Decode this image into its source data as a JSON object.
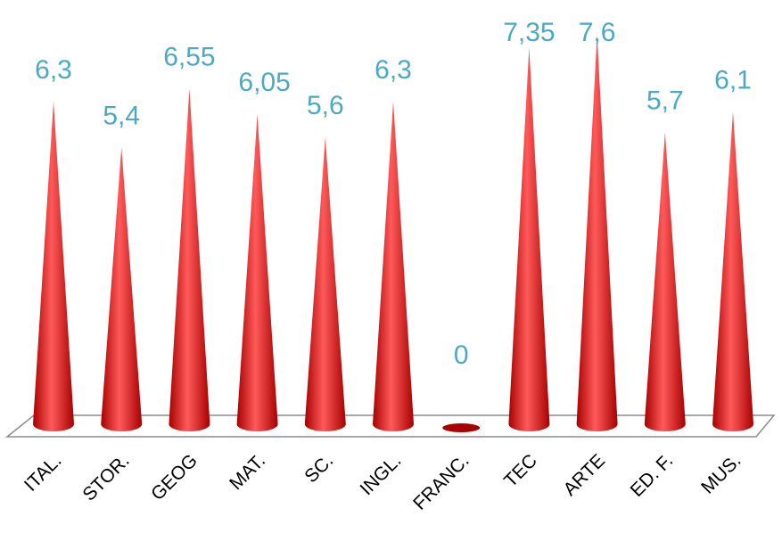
{
  "chart_data": {
    "type": "bar",
    "style": "3d-cone",
    "categories": [
      "ITAL.",
      "STOR.",
      "GEOG",
      "MAT.",
      "SC.",
      "INGL.",
      "FRANC.",
      "TEC",
      "ARTE",
      "ED. F.",
      "MUS."
    ],
    "value_labels": [
      "6,3",
      "5,4",
      "6,55",
      "6,05",
      "5,6",
      "6,3",
      "0",
      "7,35",
      "7,6",
      "5,7",
      "6,1"
    ],
    "values": [
      6.3,
      5.4,
      6.55,
      6.05,
      5.6,
      6.3,
      0,
      7.35,
      7.6,
      5.7,
      6.1
    ],
    "title": "",
    "xlabel": "",
    "ylabel": "",
    "ylim": [
      0,
      8
    ],
    "grid": false,
    "legend": "none",
    "colors": {
      "bar": "#ee0000",
      "bar_dark": "#a80000",
      "bar_light": "#ff5a5a",
      "value_label": "#4aaac6",
      "floor_edge": "#8c8c8c"
    }
  }
}
